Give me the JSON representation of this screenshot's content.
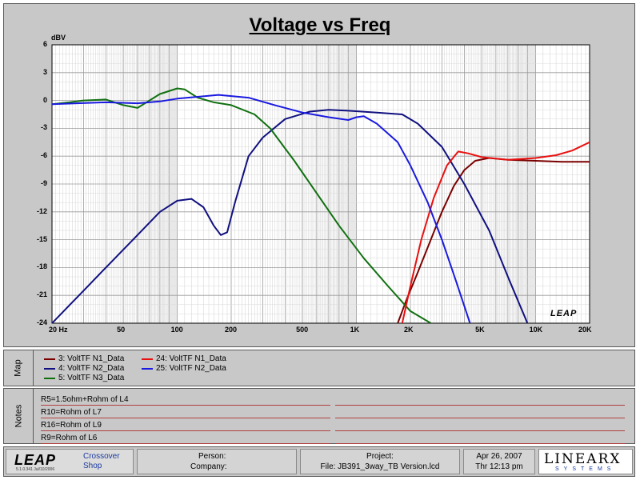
{
  "chart_data": {
    "type": "line",
    "title": "Voltage vs Freq",
    "ylabel": "dBV",
    "xlabel": "",
    "xscale": "log",
    "xlim": [
      20,
      20000
    ],
    "ylim": [
      -24,
      6
    ],
    "grid": true,
    "yticks": [
      "6",
      "3",
      "0",
      "-3",
      "-6",
      "-9",
      "-12",
      "-15",
      "-18",
      "-21",
      "-24"
    ],
    "xticks": [
      {
        "value": 20,
        "label": "20 Hz"
      },
      {
        "value": 50,
        "label": "50"
      },
      {
        "value": 100,
        "label": "100"
      },
      {
        "value": 200,
        "label": "200"
      },
      {
        "value": 500,
        "label": "500"
      },
      {
        "value": 1000,
        "label": "1K"
      },
      {
        "value": 2000,
        "label": "2K"
      },
      {
        "value": 5000,
        "label": "5K"
      },
      {
        "value": 10000,
        "label": "10K"
      },
      {
        "value": 20000,
        "label": "20K"
      }
    ],
    "series": [
      {
        "name": "3: VoltTF N1_Data",
        "color": "#7a0000",
        "points": [
          [
            1700,
            -24
          ],
          [
            1900,
            -21.5
          ],
          [
            2200,
            -18.5
          ],
          [
            2600,
            -15
          ],
          [
            3000,
            -12
          ],
          [
            3500,
            -9.2
          ],
          [
            4000,
            -7.5
          ],
          [
            4600,
            -6.5
          ],
          [
            5500,
            -6.2
          ],
          [
            7000,
            -6.4
          ],
          [
            10000,
            -6.5
          ],
          [
            14000,
            -6.6
          ],
          [
            20000,
            -6.6
          ]
        ]
      },
      {
        "name": "4: VoltTF N2_Data",
        "color": "#101080",
        "points": [
          [
            20,
            -24
          ],
          [
            30,
            -20.5
          ],
          [
            40,
            -18
          ],
          [
            60,
            -14.5
          ],
          [
            80,
            -12
          ],
          [
            100,
            -10.8
          ],
          [
            120,
            -10.6
          ],
          [
            140,
            -11.5
          ],
          [
            160,
            -13.5
          ],
          [
            175,
            -14.5
          ],
          [
            190,
            -14.2
          ],
          [
            210,
            -11
          ],
          [
            250,
            -6
          ],
          [
            300,
            -4
          ],
          [
            400,
            -2
          ],
          [
            550,
            -1.2
          ],
          [
            700,
            -1
          ],
          [
            900,
            -1.1
          ],
          [
            1300,
            -1.3
          ],
          [
            1800,
            -1.5
          ],
          [
            2200,
            -2.5
          ],
          [
            3000,
            -5
          ],
          [
            4000,
            -9
          ],
          [
            5500,
            -14
          ],
          [
            7000,
            -19
          ],
          [
            9000,
            -24
          ]
        ]
      },
      {
        "name": "5: VoltTF N3_Data",
        "color": "#107010",
        "points": [
          [
            20,
            -0.4
          ],
          [
            25,
            -0.2
          ],
          [
            30,
            0
          ],
          [
            40,
            0.1
          ],
          [
            50,
            -0.5
          ],
          [
            60,
            -0.8
          ],
          [
            80,
            0.7
          ],
          [
            100,
            1.3
          ],
          [
            110,
            1.2
          ],
          [
            130,
            0.3
          ],
          [
            160,
            -0.2
          ],
          [
            200,
            -0.5
          ],
          [
            270,
            -1.5
          ],
          [
            330,
            -3
          ],
          [
            450,
            -6.5
          ],
          [
            600,
            -10
          ],
          [
            800,
            -13.5
          ],
          [
            1100,
            -17
          ],
          [
            1500,
            -20
          ],
          [
            2000,
            -22.7
          ],
          [
            2600,
            -24
          ]
        ]
      },
      {
        "name": "24: VoltTF N1_Data",
        "color": "#e81010",
        "points": [
          [
            1800,
            -24
          ],
          [
            2000,
            -20
          ],
          [
            2300,
            -15
          ],
          [
            2700,
            -10.5
          ],
          [
            3200,
            -7
          ],
          [
            3700,
            -5.5
          ],
          [
            4200,
            -5.7
          ],
          [
            5000,
            -6.1
          ],
          [
            7000,
            -6.4
          ],
          [
            10000,
            -6.2
          ],
          [
            13000,
            -5.9
          ],
          [
            16000,
            -5.4
          ],
          [
            20000,
            -4.5
          ]
        ]
      },
      {
        "name": "25: VoltTF N2_Data",
        "color": "#1a1ae0",
        "points": [
          [
            20,
            -0.4
          ],
          [
            40,
            -0.2
          ],
          [
            60,
            -0.3
          ],
          [
            80,
            -0.1
          ],
          [
            100,
            0.2
          ],
          [
            130,
            0.4
          ],
          [
            170,
            0.6
          ],
          [
            250,
            0.3
          ],
          [
            350,
            -0.5
          ],
          [
            500,
            -1.3
          ],
          [
            700,
            -1.8
          ],
          [
            900,
            -2.1
          ],
          [
            1000,
            -1.8
          ],
          [
            1100,
            -1.7
          ],
          [
            1300,
            -2.5
          ],
          [
            1700,
            -4.5
          ],
          [
            2000,
            -7
          ],
          [
            2500,
            -11
          ],
          [
            3000,
            -15
          ],
          [
            3600,
            -19.5
          ],
          [
            4300,
            -24
          ]
        ]
      }
    ]
  },
  "map_panel": {
    "tab_label": "Map",
    "legend": [
      {
        "label": "3: VoltTF N1_Data",
        "color": "#7a0000"
      },
      {
        "label": "4: VoltTF N2_Data",
        "color": "#101080"
      },
      {
        "label": "5: VoltTF N3_Data",
        "color": "#107010"
      },
      {
        "label": "24: VoltTF N1_Data",
        "color": "#e81010"
      },
      {
        "label": "25: VoltTF N2_Data",
        "color": "#1a1ae0"
      }
    ]
  },
  "notes_panel": {
    "tab_label": "Notes",
    "lines": [
      "R5=1.5ohm+Rohm of L4",
      "R10=Rohm of L7",
      "R16=Rohm of L9",
      "R9=Rohm of L6"
    ]
  },
  "plot_watermark": "LEAP",
  "footer": {
    "brand": "LEAP",
    "version": "5.1.0.341  Jul/10/2006",
    "product_line1": "Crossover",
    "product_line2": "Shop",
    "person_label": "Person:",
    "company_label": "Company:",
    "project_label": "Project:",
    "file_label": "File: JB391_3way_TB Version.lcd",
    "date": "Apr 26, 2007",
    "time": "Thr 12:13 pm",
    "vendor_big": "LINEARX",
    "vendor_small": "SYSTEMS"
  }
}
